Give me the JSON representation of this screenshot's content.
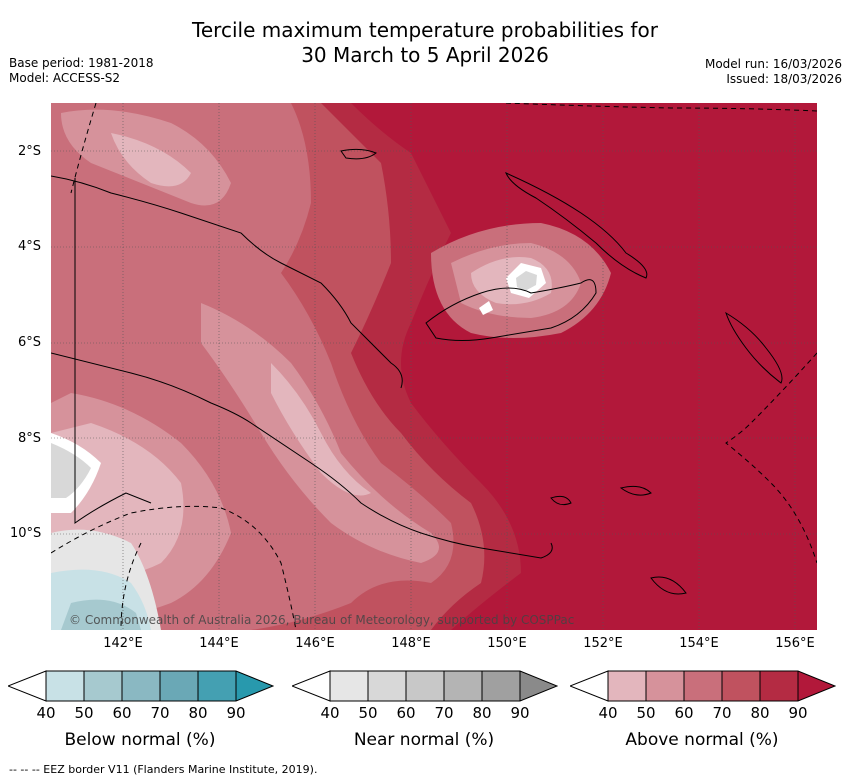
{
  "title_line1": "Tercile maximum temperature probabilities for",
  "title_line2": "30 March to 5 April 2026",
  "base_period": "Base period: 1981-2018",
  "model": "Model: ACCESS-S2",
  "model_run": "Model run: 16/03/2026",
  "issued": "Issued: 18/03/2026",
  "lat_labels": [
    "2°S",
    "4°S",
    "6°S",
    "8°S",
    "10°S"
  ],
  "lon_labels": [
    "142°E",
    "144°E",
    "146°E",
    "148°E",
    "150°E",
    "152°E",
    "154°E",
    "156°E"
  ],
  "credit": "© Commonwealth of Australia 2026, Bureau of Meteorology, supported by COSPPac",
  "colorbars": [
    {
      "title": "Below normal (%)",
      "ticks": [
        "40",
        "50",
        "60",
        "70",
        "80",
        "90"
      ],
      "colors": [
        "#c8e1e6",
        "#a6c9cf",
        "#8ab8c2",
        "#6aa8b6",
        "#44a0b2",
        "#2899ad"
      ]
    },
    {
      "title": "Near normal (%)",
      "ticks": [
        "40",
        "50",
        "60",
        "70",
        "80",
        "90"
      ],
      "colors": [
        "#e6e6e6",
        "#d8d8d8",
        "#c8c8c8",
        "#b4b4b4",
        "#a0a0a0",
        "#8a8a8a"
      ]
    },
    {
      "title": "Above normal (%)",
      "ticks": [
        "40",
        "50",
        "60",
        "70",
        "80",
        "90"
      ],
      "colors": [
        "#e3b6bd",
        "#d6929b",
        "#c96f7b",
        "#c0525f",
        "#b42b43",
        "#b2183a"
      ]
    }
  ],
  "footnote": "--  --  -- EEZ border V11 (Flanders Marine Institute, 2019).",
  "legend_line": "EEZ border"
}
